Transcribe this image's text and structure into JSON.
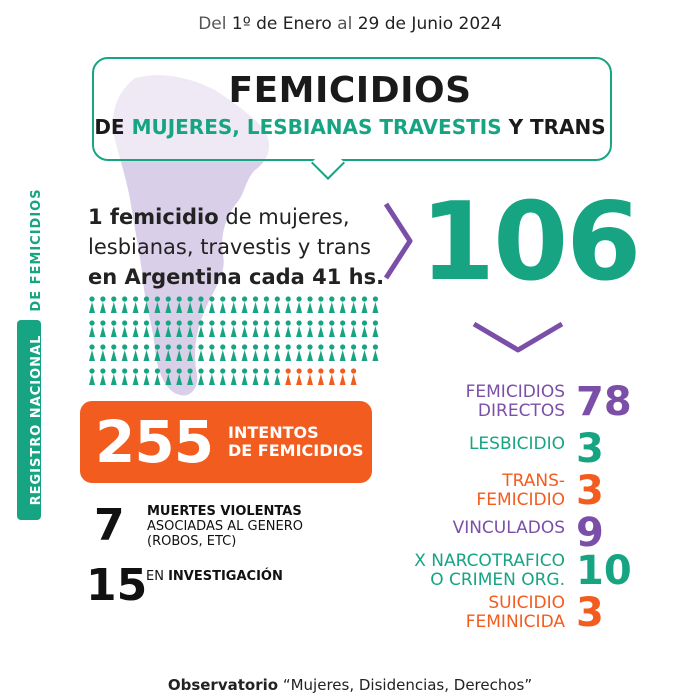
{
  "header": {
    "date_prefix": "Del ",
    "date_start": "1º de Enero",
    "date_mid": " al ",
    "date_end": "29 de Junio 2024"
  },
  "title": {
    "main": "FEMICIDIOS",
    "de": "DE",
    "highlight": "MUJERES, LESBIANAS TRAVESTIS",
    "y": "Y TRANS"
  },
  "side_label": {
    "part1": "REGISTRO NACIONAL",
    "part2": "DE FEMICIDIOS"
  },
  "lead": {
    "l1_bold": "1 femicidio",
    "l1_rest": " de mujeres,",
    "l2": "lesbianas, travestis y trans",
    "l3_bold": "en Argentina cada 41 hs."
  },
  "total": "106",
  "people_grid": {
    "total_figures": 106,
    "teal_count": 99,
    "orange_count": 7
  },
  "attempts": {
    "number": "255",
    "line1": "INTENTOS",
    "line2": "DE FEMICIDIOS"
  },
  "violent_deaths": {
    "number": "7",
    "line1": "MUERTES VIOLENTAS",
    "line2": "ASOCIADAS AL GENERO",
    "line3": "(ROBOS, ETC)"
  },
  "investigation": {
    "number": "15",
    "prefix": "EN ",
    "bold": "INVESTIGACIÓN"
  },
  "categories": [
    {
      "line1": "FEMICIDIOS",
      "line2": "DIRECTOS",
      "value": "78",
      "color": "#7b4fa8"
    },
    {
      "line1": "LESBICIDIO",
      "line2": "",
      "value": "3",
      "color": "#17a482"
    },
    {
      "line1": "TRANS-",
      "line2": "FEMICIDIO",
      "value": "3",
      "color": "#f25c1f"
    },
    {
      "line1": "VINCULADOS",
      "line2": "",
      "value": "9",
      "color": "#7b4fa8"
    },
    {
      "line1": "X NARCOTRAFICO",
      "line2": "O CRIMEN ORG.",
      "value": "10",
      "color": "#17a482"
    },
    {
      "line1": "SUICIDIO",
      "line2": "FEMINICIDA",
      "value": "3",
      "color": "#f25c1f"
    }
  ],
  "footer": {
    "bold": "Observatorio",
    "rest": " “Mujeres, Disidencias, Derechos”"
  },
  "colors": {
    "teal": "#17a482",
    "orange": "#f25c1f",
    "purple": "#7b4fa8",
    "map": "#d9cfe9"
  }
}
